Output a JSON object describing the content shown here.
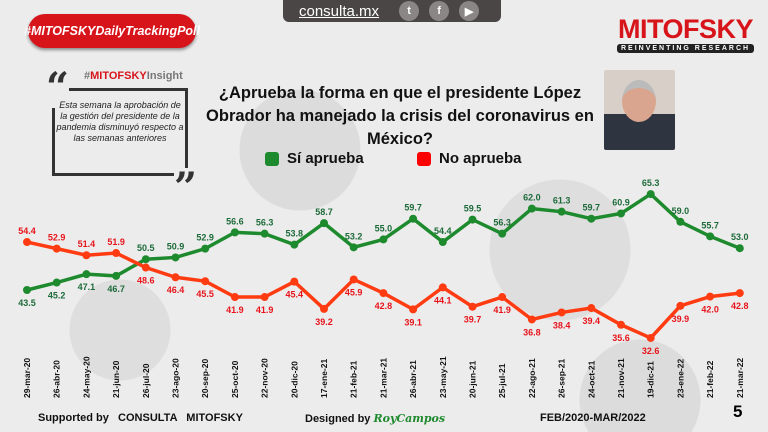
{
  "header": {
    "url": "consulta.mx",
    "social": [
      "twitter-icon",
      "facebook-icon",
      "youtube-icon"
    ]
  },
  "hashtag": "#MITOFSKYDailyTrackingPoll",
  "insight": {
    "prefix": "#",
    "brand": "MITOFSKY",
    "suffix": "Insight",
    "text": "Esta semana la aprobación de la gestión del presidente de la pandemia disminuyó respecto a las semanas anteriores"
  },
  "logo": {
    "name": "MITOFSKY",
    "tagline": "REINVENTING RESEARCH"
  },
  "question": "¿Aprueba la forma en que el presidente López Obrador ha manejado la crisis del coronavirus en México?",
  "footer": {
    "supported": "Supported by   CONSULTA   MITOFSKY",
    "designed": "Designed by",
    "designer": "RoyCampos",
    "period": "FEB/2020-MAR/2022",
    "page": "5"
  },
  "chart_data": {
    "type": "line",
    "x": [
      "29-mar-20",
      "26-abr-20",
      "24-may-20",
      "21-jun-20",
      "26-jul-20",
      "23-ago-20",
      "20-sep-20",
      "25-oct-20",
      "22-nov-20",
      "20-dic-20",
      "17-ene-21",
      "21-feb-21",
      "21-mar-21",
      "26-abr-21",
      "23-may-21",
      "20-jun-21",
      "25-jul-21",
      "22-ago-21",
      "26-sep-21",
      "24-oct-21",
      "21-nov-21",
      "19-dic-21",
      "23-ene-22",
      "21-feb-22",
      "21-mar-22"
    ],
    "series": [
      {
        "name": "Sí aprueba",
        "color": "#1e8a2e",
        "values": [
          43.5,
          45.2,
          47.1,
          46.7,
          50.5,
          50.9,
          52.9,
          56.6,
          56.3,
          53.8,
          58.7,
          53.2,
          55.0,
          59.7,
          54.4,
          59.5,
          56.3,
          62.0,
          61.3,
          59.7,
          60.9,
          65.3,
          59.0,
          55.7,
          53.0
        ]
      },
      {
        "name": "No aprueba",
        "color": "#ff3b12",
        "values": [
          54.4,
          52.9,
          51.4,
          51.9,
          48.6,
          46.4,
          45.5,
          41.9,
          41.9,
          45.4,
          39.2,
          45.9,
          42.8,
          39.1,
          44.1,
          39.7,
          41.9,
          36.8,
          38.4,
          39.4,
          35.6,
          32.6,
          39.9,
          42.0,
          42.8
        ]
      }
    ],
    "legend": "top"
  }
}
